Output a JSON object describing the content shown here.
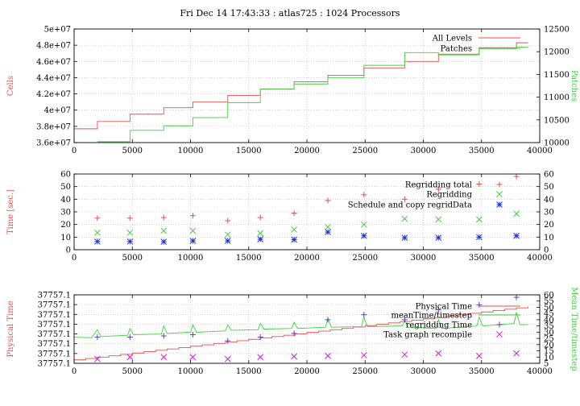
{
  "title": "Fri Dec 14 17:43:33 : atlas725 : 1024 Processors",
  "colors": {
    "red": "#e05050",
    "green": "#40d040",
    "blue": "#2030d0",
    "magenta": "#d020d0",
    "purple": "#5a40b0",
    "grid": "#b8b8b8"
  },
  "chart_data": [
    {
      "type": "line",
      "xlim": [
        0,
        40000
      ],
      "xticks": [
        0,
        5000,
        10000,
        15000,
        20000,
        25000,
        30000,
        35000,
        40000
      ],
      "ylabel": "Cells",
      "ylim": [
        36000000,
        50000000
      ],
      "yticks": [
        36000000,
        38000000,
        40000000,
        42000000,
        44000000,
        46000000,
        48000000,
        50000000
      ],
      "ytick_labels": [
        "3.6e+07",
        "3.8e+07",
        "4e+07",
        "4.2e+07",
        "4.4e+07",
        "4.6e+07",
        "4.8e+07",
        "5e+07"
      ],
      "y2label": "Patches",
      "y2lim": [
        10000,
        12500
      ],
      "y2ticks": [
        10000,
        10500,
        11000,
        11500,
        12000,
        12500
      ],
      "series": [
        {
          "name": "All Levels",
          "axis": "y1",
          "color": "red",
          "step": true,
          "x": [
            0,
            2000,
            4800,
            7700,
            10200,
            13200,
            16000,
            18900,
            21800,
            24900,
            28400,
            31300,
            34800,
            38000,
            39000
          ],
          "y": [
            37700000,
            38600000,
            39500000,
            40300000,
            41000000,
            41800000,
            42600000,
            43500000,
            44300000,
            45200000,
            46000000,
            46900000,
            47700000,
            48300000,
            48300000
          ]
        },
        {
          "name": "Patches",
          "axis": "y2",
          "color": "green",
          "step": true,
          "x": [
            2000,
            4800,
            7700,
            10200,
            13200,
            16000,
            18900,
            21800,
            24900,
            28400,
            31300,
            34800,
            38000,
            39000
          ],
          "y": [
            10020,
            10270,
            10370,
            10550,
            10880,
            11180,
            11290,
            11430,
            11700,
            11980,
            11930,
            12070,
            12100,
            12100
          ]
        }
      ],
      "legend": "top-right"
    },
    {
      "type": "scatter",
      "xlim": [
        0,
        40000
      ],
      "xticks": [
        0,
        5000,
        10000,
        15000,
        20000,
        25000,
        30000,
        35000,
        40000
      ],
      "ylabel": "Time [sec.]",
      "ylim": [
        0,
        60
      ],
      "yticks": [
        0,
        10,
        20,
        30,
        40,
        50,
        60
      ],
      "y2ticks": [
        0,
        10,
        20,
        30,
        40,
        50,
        60
      ],
      "series": [
        {
          "name": "Regridding total",
          "color": "red",
          "marker": "+",
          "x": [
            2000,
            4800,
            7700,
            10200,
            13200,
            16000,
            18900,
            21800,
            24900,
            28400,
            31300,
            34800,
            38000
          ],
          "y": [
            25,
            25,
            25.5,
            27,
            23,
            25.5,
            29,
            39,
            43.5,
            40,
            48,
            52,
            58
          ]
        },
        {
          "name": "Regridding",
          "color": "green",
          "marker": "x",
          "x": [
            2000,
            4800,
            7700,
            10200,
            13200,
            16000,
            18900,
            21800,
            24900,
            28400,
            31300,
            34800,
            38000
          ],
          "y": [
            13.5,
            13.5,
            15,
            15,
            12,
            13,
            16,
            18,
            20,
            24.5,
            24,
            24,
            28.5
          ]
        },
        {
          "name": "Schedule and copy regridData",
          "color": "blue",
          "marker": "*",
          "x": [
            2000,
            4800,
            7700,
            10200,
            13200,
            16000,
            18900,
            21800,
            24900,
            28400,
            31300,
            34800,
            38000
          ],
          "y": [
            6.5,
            6.5,
            6.3,
            7,
            7,
            8.3,
            8,
            14,
            11,
            9.5,
            9.5,
            10,
            11
          ]
        }
      ],
      "legend": "top-right"
    },
    {
      "type": "line",
      "xlim": [
        0,
        40000
      ],
      "xticks": [
        0,
        5000,
        10000,
        15000,
        20000,
        25000,
        30000,
        35000,
        40000
      ],
      "ylabel": "Physical Time",
      "ytick_labels": [
        "37757.1",
        "37757.1",
        "37757.1",
        "37757.1",
        "37757.1",
        "37757.1",
        "37757.1",
        "37757.1"
      ],
      "y2label": "Mean Time/timestep",
      "y2lim": [
        5,
        60
      ],
      "y2ticks": [
        5,
        10,
        15,
        20,
        25,
        30,
        35,
        40,
        45,
        50,
        55,
        60
      ],
      "series": [
        {
          "name": "Physical Time",
          "axis": "y1",
          "color": "red",
          "step": true,
          "x": [
            0,
            1000,
            2000,
            3000,
            4000,
            5000,
            6000,
            7000,
            8000,
            9000,
            10000,
            11000,
            12000,
            13000,
            14000,
            15000,
            16000,
            17000,
            18000,
            19000,
            20000,
            21000,
            22000,
            23000,
            24000,
            25000,
            26000,
            27000,
            28000,
            29000,
            30000,
            31000,
            32000,
            33000,
            34000,
            35000,
            36000,
            37000,
            38000,
            39000
          ],
          "y": [
            0.05,
            0.07,
            0.09,
            0.11,
            0.13,
            0.15,
            0.17,
            0.19,
            0.21,
            0.23,
            0.25,
            0.27,
            0.29,
            0.31,
            0.33,
            0.35,
            0.37,
            0.39,
            0.41,
            0.43,
            0.45,
            0.47,
            0.49,
            0.51,
            0.53,
            0.55,
            0.57,
            0.59,
            0.61,
            0.63,
            0.65,
            0.67,
            0.69,
            0.71,
            0.73,
            0.75,
            0.77,
            0.79,
            0.81,
            0.83
          ]
        },
        {
          "name": "meanTime/timestep",
          "axis": "y2",
          "color": "green",
          "baseline": [
            [
              0,
              26
            ],
            [
              1500,
              25.5
            ],
            [
              2000,
              32
            ],
            [
              2300,
              26.5
            ],
            [
              4600,
              27.5
            ],
            [
              4800,
              33
            ],
            [
              5100,
              28
            ],
            [
              7500,
              28.5
            ],
            [
              7700,
              35
            ],
            [
              8000,
              29
            ],
            [
              10000,
              30
            ],
            [
              10200,
              36
            ],
            [
              10500,
              30
            ],
            [
              13000,
              31
            ],
            [
              13200,
              36
            ],
            [
              13500,
              31.5
            ],
            [
              15800,
              32
            ],
            [
              16000,
              37
            ],
            [
              16300,
              32.5
            ],
            [
              18700,
              33
            ],
            [
              18900,
              38
            ],
            [
              19200,
              33
            ],
            [
              21600,
              34
            ],
            [
              21800,
              41
            ],
            [
              22100,
              34
            ],
            [
              24700,
              34.5
            ],
            [
              24900,
              42
            ],
            [
              25200,
              34.5
            ],
            [
              28200,
              35
            ],
            [
              28400,
              40
            ],
            [
              28700,
              34
            ],
            [
              31100,
              33
            ],
            [
              31300,
              40
            ],
            [
              31600,
              33
            ],
            [
              34600,
              35
            ],
            [
              34800,
              42
            ],
            [
              35100,
              35
            ],
            [
              37800,
              37
            ],
            [
              38000,
              46
            ],
            [
              38300,
              36
            ],
            [
              39000,
              36
            ]
          ]
        },
        {
          "name": "regridding Time",
          "axis": "y2",
          "color": "purple",
          "marker": "+",
          "x": [
            2000,
            4800,
            7700,
            10200,
            13200,
            16000,
            18900,
            21800,
            24900,
            28400,
            31300,
            34800,
            38000
          ],
          "y": [
            26,
            26,
            27,
            28,
            23,
            26,
            29,
            40,
            44,
            40,
            48,
            52,
            58
          ]
        },
        {
          "name": "Task graph recompile",
          "axis": "y2",
          "color": "magenta",
          "marker": "x",
          "x": [
            2000,
            4800,
            7700,
            10200,
            13200,
            16000,
            18900,
            21800,
            24900,
            28400,
            31300,
            34800,
            38000
          ],
          "y": [
            8.5,
            10,
            10,
            10,
            8.5,
            10,
            10.5,
            11,
            11.5,
            12,
            13,
            11,
            13
          ]
        }
      ],
      "legend": "top-right"
    }
  ]
}
